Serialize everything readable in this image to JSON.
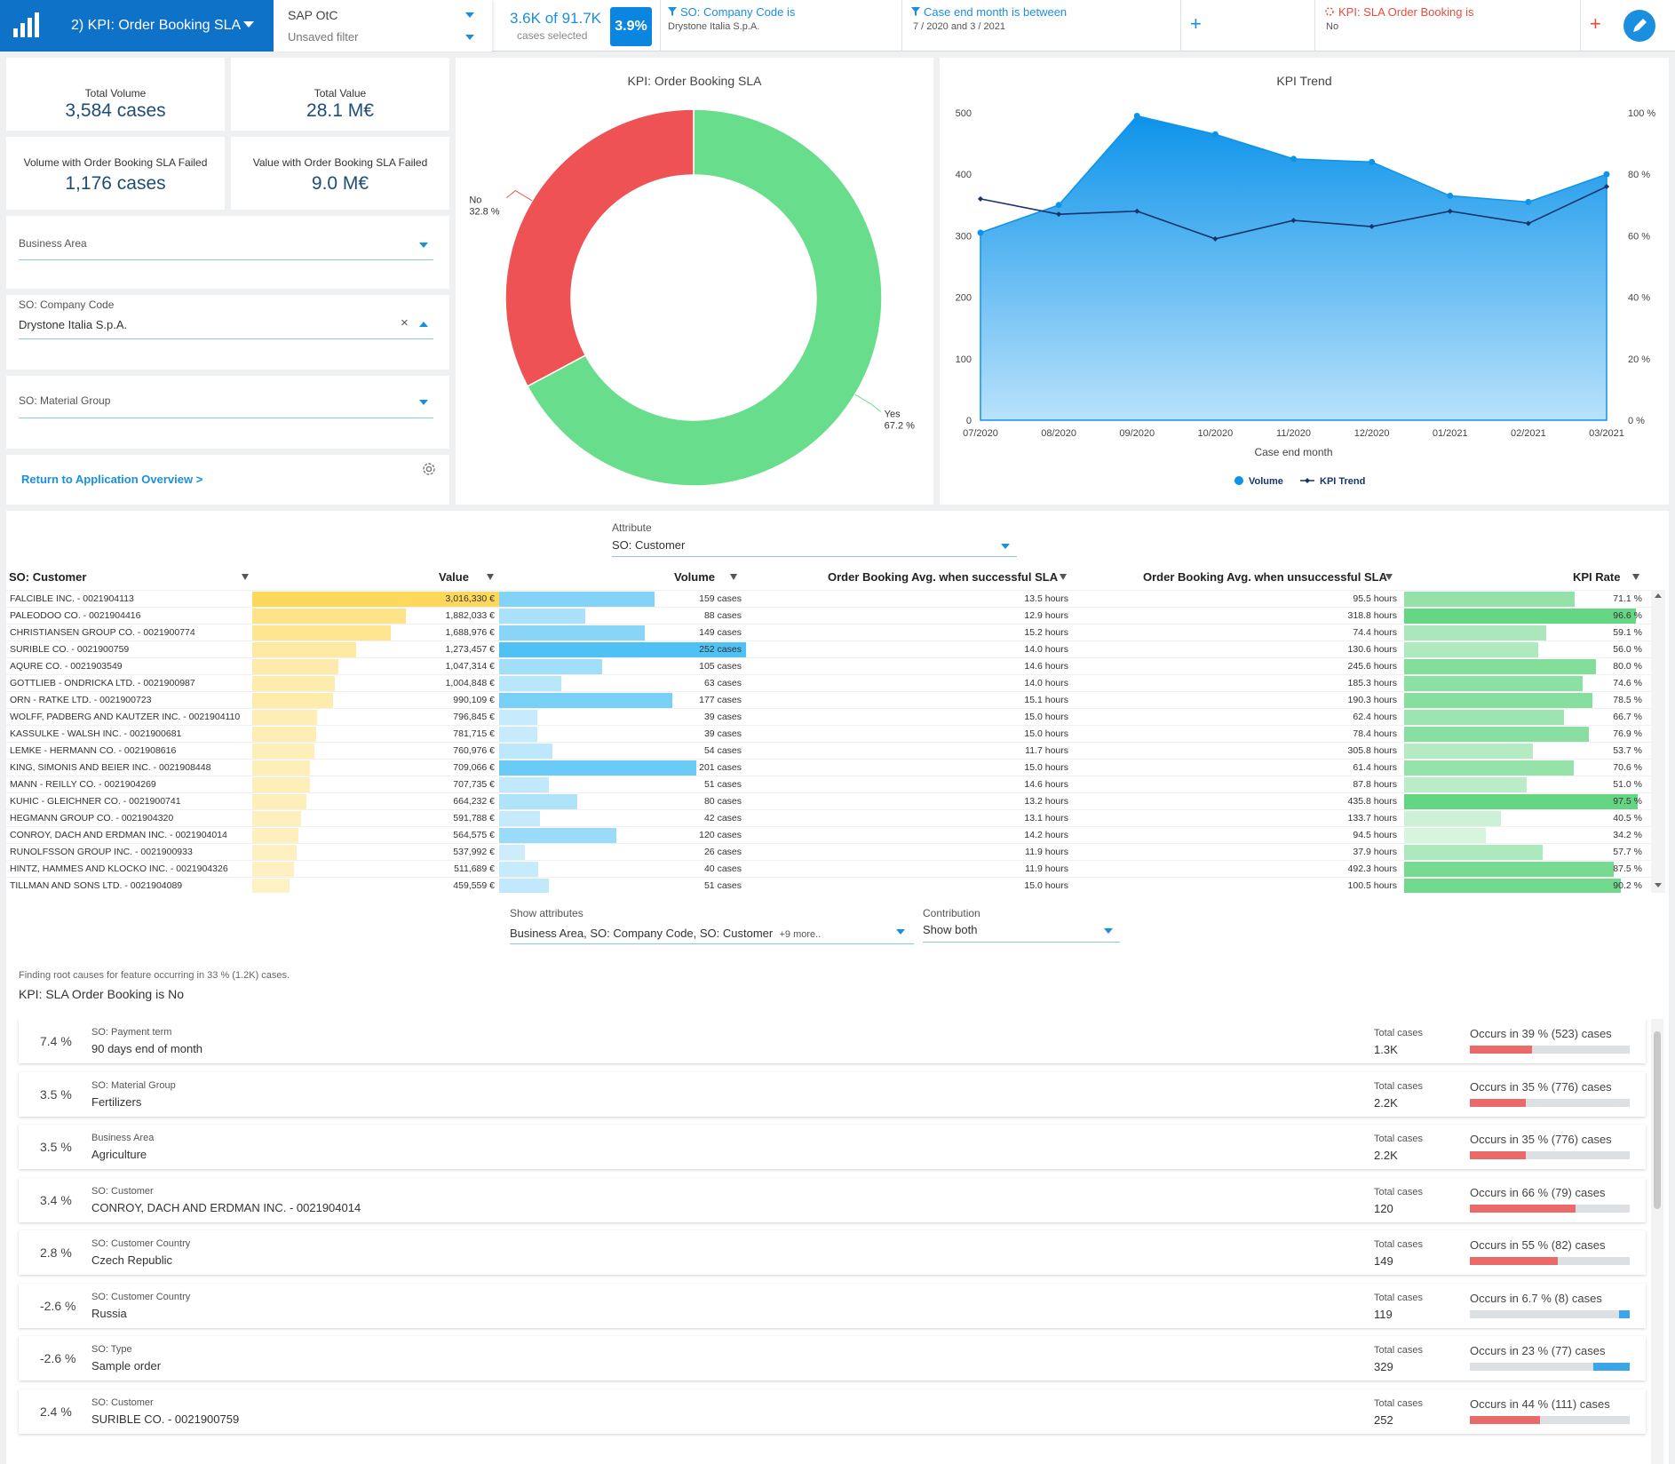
{
  "topbar": {
    "app_title": "2) KPI: Order Booking SLA",
    "source": "SAP OtC",
    "filter_state": "Unsaved filter",
    "cases_count": "3.6K of 91.7K",
    "cases_label": "cases selected",
    "cases_pct": "3.9%",
    "filters": [
      {
        "title": "SO: Company Code is",
        "value": "Drystone Italia S.p.A."
      },
      {
        "title": "Case end month is between",
        "value": "7 / 2020 and 3 / 2021"
      },
      {
        "title": "KPI: SLA Order Booking is",
        "value": "No"
      }
    ],
    "add_symbol": "+"
  },
  "kpis": [
    {
      "label": "Total Volume",
      "value": "3,584 cases"
    },
    {
      "label": "Total Value",
      "value": "28.1 M€"
    },
    {
      "label": "Volume with Order Booking SLA Failed",
      "value": "1,176 cases"
    },
    {
      "label": "Value with Order Booking SLA Failed",
      "value": "9.0 M€"
    }
  ],
  "dropdowns": {
    "business_area": {
      "label": "Business Area",
      "value": ""
    },
    "company_code": {
      "label": "SO: Company Code",
      "value": "Drystone Italia S.p.A."
    },
    "material_group": {
      "label": "SO: Material Group",
      "value": ""
    }
  },
  "return_link": "Return to Application Overview",
  "return_arrow": ">",
  "clear_symbol": "×",
  "colors": {
    "accent": "#1a8fe0",
    "yes": "#68dd8c",
    "no": "#ef5254",
    "value_bar": "#fdd85a",
    "volume_bar": "#4fc1f5",
    "kpi_bar": "#5fd47f"
  },
  "donut": {
    "title": "KPI: Order Booking SLA",
    "slices": [
      {
        "label": "Yes",
        "value": 67.2,
        "pct_text": "67.2 %"
      },
      {
        "label": "No",
        "value": 32.8,
        "pct_text": "32.8 %"
      }
    ]
  },
  "chart_data": {
    "type": "area",
    "title": "KPI Trend",
    "xlabel": "Case end month",
    "categories": [
      "07/2020",
      "08/2020",
      "09/2020",
      "10/2020",
      "11/2020",
      "12/2020",
      "01/2021",
      "02/2021",
      "03/2021"
    ],
    "y_ticks": [
      "0",
      "100",
      "200",
      "300",
      "400",
      "500"
    ],
    "y2_ticks": [
      "0 %",
      "20 %",
      "40 %",
      "60 %",
      "80 %",
      "100 %"
    ],
    "ylim": [
      0,
      500
    ],
    "y2lim": [
      0,
      100
    ],
    "series": [
      {
        "name": "Volume",
        "type": "area",
        "axis": "left",
        "values": [
          305,
          350,
          495,
          465,
          425,
          420,
          365,
          355,
          400
        ]
      },
      {
        "name": "KPI Trend",
        "type": "line",
        "axis": "right",
        "values": [
          72,
          67,
          68,
          59,
          65,
          63,
          68,
          64,
          76
        ]
      }
    ],
    "legend_position": "bottom"
  },
  "attribute": {
    "label": "Attribute",
    "value": "SO: Customer"
  },
  "table": {
    "headers": [
      "SO: Customer",
      "Value",
      "Volume",
      "Order Booking Avg. when successful SLA",
      "Order Booking Avg. when unsuccessful SLA",
      "KPI Rate"
    ],
    "rows": [
      {
        "customer": "FALCIBLE INC. - 0021904113",
        "value": "3,016,330 €",
        "value_num": 3016330,
        "volume": "159 cases",
        "volume_num": 159,
        "succ": "13.5 hours",
        "unsucc": "95.5 hours",
        "kpi": "71.1 %",
        "kpi_num": 71.1
      },
      {
        "customer": "PALEODOO CO. - 0021904416",
        "value": "1,882,033 €",
        "value_num": 1882033,
        "volume": "88 cases",
        "volume_num": 88,
        "succ": "12.9 hours",
        "unsucc": "318.8 hours",
        "kpi": "96.6 %",
        "kpi_num": 96.6
      },
      {
        "customer": "CHRISTIANSEN GROUP CO. - 0021900774",
        "value": "1,688,976 €",
        "value_num": 1688976,
        "volume": "149 cases",
        "volume_num": 149,
        "succ": "15.2 hours",
        "unsucc": "74.4 hours",
        "kpi": "59.1 %",
        "kpi_num": 59.1
      },
      {
        "customer": "SURIBLE CO. - 0021900759",
        "value": "1,273,457 €",
        "value_num": 1273457,
        "volume": "252 cases",
        "volume_num": 252,
        "succ": "14.0 hours",
        "unsucc": "130.6 hours",
        "kpi": "56.0 %",
        "kpi_num": 56.0
      },
      {
        "customer": "AQURE CO. - 0021903549",
        "value": "1,047,314 €",
        "value_num": 1047314,
        "volume": "105 cases",
        "volume_num": 105,
        "succ": "14.6 hours",
        "unsucc": "245.6 hours",
        "kpi": "80.0 %",
        "kpi_num": 80.0
      },
      {
        "customer": "GOTTLIEB - ONDRICKA LTD. - 0021900987",
        "value": "1,004,848 €",
        "value_num": 1004848,
        "volume": "63 cases",
        "volume_num": 63,
        "succ": "14.0 hours",
        "unsucc": "185.3 hours",
        "kpi": "74.6 %",
        "kpi_num": 74.6
      },
      {
        "customer": "ORN - RATKE LTD. - 0021900723",
        "value": "990,109 €",
        "value_num": 990109,
        "volume": "177 cases",
        "volume_num": 177,
        "succ": "15.1 hours",
        "unsucc": "190.3 hours",
        "kpi": "78.5 %",
        "kpi_num": 78.5
      },
      {
        "customer": "WOLFF, PADBERG AND KAUTZER INC. - 0021904110",
        "value": "796,845 €",
        "value_num": 796845,
        "volume": "39 cases",
        "volume_num": 39,
        "succ": "15.0 hours",
        "unsucc": "62.4 hours",
        "kpi": "66.7 %",
        "kpi_num": 66.7
      },
      {
        "customer": "KASSULKE - WALSH INC. - 0021900681",
        "value": "781,715 €",
        "value_num": 781715,
        "volume": "39 cases",
        "volume_num": 39,
        "succ": "15.0 hours",
        "unsucc": "78.4 hours",
        "kpi": "76.9 %",
        "kpi_num": 76.9
      },
      {
        "customer": "LEMKE - HERMANN CO. - 0021908616",
        "value": "760,976 €",
        "value_num": 760976,
        "volume": "54 cases",
        "volume_num": 54,
        "succ": "11.7 hours",
        "unsucc": "305.8 hours",
        "kpi": "53.7 %",
        "kpi_num": 53.7
      },
      {
        "customer": "KING, SIMONIS AND BEIER INC. - 0021908448",
        "value": "709,066 €",
        "value_num": 709066,
        "volume": "201 cases",
        "volume_num": 201,
        "succ": "15.0 hours",
        "unsucc": "61.4 hours",
        "kpi": "70.6 %",
        "kpi_num": 70.6
      },
      {
        "customer": "MANN - REILLY CO. - 0021904269",
        "value": "707,735 €",
        "value_num": 707735,
        "volume": "51 cases",
        "volume_num": 51,
        "succ": "14.6 hours",
        "unsucc": "87.8 hours",
        "kpi": "51.0 %",
        "kpi_num": 51.0
      },
      {
        "customer": "KUHIC - GLEICHNER CO. - 0021900741",
        "value": "664,232 €",
        "value_num": 664232,
        "volume": "80 cases",
        "volume_num": 80,
        "succ": "13.2 hours",
        "unsucc": "435.8 hours",
        "kpi": "97.5 %",
        "kpi_num": 97.5
      },
      {
        "customer": "HEGMANN GROUP CO. - 0021904320",
        "value": "591,788 €",
        "value_num": 591788,
        "volume": "42 cases",
        "volume_num": 42,
        "succ": "13.1 hours",
        "unsucc": "133.7 hours",
        "kpi": "40.5 %",
        "kpi_num": 40.5
      },
      {
        "customer": "CONROY, DACH AND ERDMAN INC. - 0021904014",
        "value": "564,575 €",
        "value_num": 564575,
        "volume": "120 cases",
        "volume_num": 120,
        "succ": "14.2 hours",
        "unsucc": "94.5 hours",
        "kpi": "34.2 %",
        "kpi_num": 34.2
      },
      {
        "customer": "RUNOLFSSON GROUP INC. - 0021900933",
        "value": "537,992 €",
        "value_num": 537992,
        "volume": "26 cases",
        "volume_num": 26,
        "succ": "11.9 hours",
        "unsucc": "37.9 hours",
        "kpi": "57.7 %",
        "kpi_num": 57.7
      },
      {
        "customer": "HINTZ, HAMMES AND KLOCKO INC. - 0021904326",
        "value": "511,689 €",
        "value_num": 511689,
        "volume": "40 cases",
        "volume_num": 40,
        "succ": "11.9 hours",
        "unsucc": "492.3 hours",
        "kpi": "87.5 %",
        "kpi_num": 87.5
      },
      {
        "customer": "TILLMAN AND SONS LTD. - 0021904089",
        "value": "459,559 €",
        "value_num": 459559,
        "volume": "51 cases",
        "volume_num": 51,
        "succ": "15.0 hours",
        "unsucc": "100.5 hours",
        "kpi": "90.2 %",
        "kpi_num": 90.2
      }
    ]
  },
  "show_attributes": {
    "label": "Show attributes",
    "value": "Business Area, SO: Company Code, SO: Customer",
    "more": "+9 more.."
  },
  "contribution": {
    "label": "Contribution",
    "value": "Show both"
  },
  "root_causes": {
    "intro": "Finding root causes for feature occurring in 33 % (1.2K) cases.",
    "heading": "KPI: SLA Order Booking is No",
    "total_label": "Total cases",
    "items": [
      {
        "pct": "7.4 %",
        "attr": "SO: Payment term",
        "value": "90 days end of month",
        "total": "1.3K",
        "occurs": "Occurs in 39 % (523) cases",
        "fill": 39,
        "dir": "pos"
      },
      {
        "pct": "3.5 %",
        "attr": "SO: Material Group",
        "value": "Fertilizers",
        "total": "2.2K",
        "occurs": "Occurs in 35 % (776) cases",
        "fill": 35,
        "dir": "pos"
      },
      {
        "pct": "3.5 %",
        "attr": "Business Area",
        "value": "Agriculture",
        "total": "2.2K",
        "occurs": "Occurs in 35 % (776) cases",
        "fill": 35,
        "dir": "pos"
      },
      {
        "pct": "3.4 %",
        "attr": "SO: Customer",
        "value": "CONROY, DACH AND ERDMAN INC. - 0021904014",
        "total": "120",
        "occurs": "Occurs in 66 % (79) cases",
        "fill": 66,
        "dir": "pos"
      },
      {
        "pct": "2.8 %",
        "attr": "SO: Customer Country",
        "value": "Czech Republic",
        "total": "149",
        "occurs": "Occurs in 55 % (82) cases",
        "fill": 55,
        "dir": "pos"
      },
      {
        "pct": "-2.6 %",
        "attr": "SO: Customer Country",
        "value": "Russia",
        "total": "119",
        "occurs": "Occurs in 6.7 % (8) cases",
        "fill": 6.7,
        "dir": "neg"
      },
      {
        "pct": "-2.6 %",
        "attr": "SO: Type",
        "value": "Sample order",
        "total": "329",
        "occurs": "Occurs in 23 % (77) cases",
        "fill": 23,
        "dir": "neg"
      },
      {
        "pct": "2.4 %",
        "attr": "SO: Customer",
        "value": "SURIBLE CO. - 0021900759",
        "total": "252",
        "occurs": "Occurs in 44 % (111) cases",
        "fill": 44,
        "dir": "pos"
      }
    ]
  }
}
